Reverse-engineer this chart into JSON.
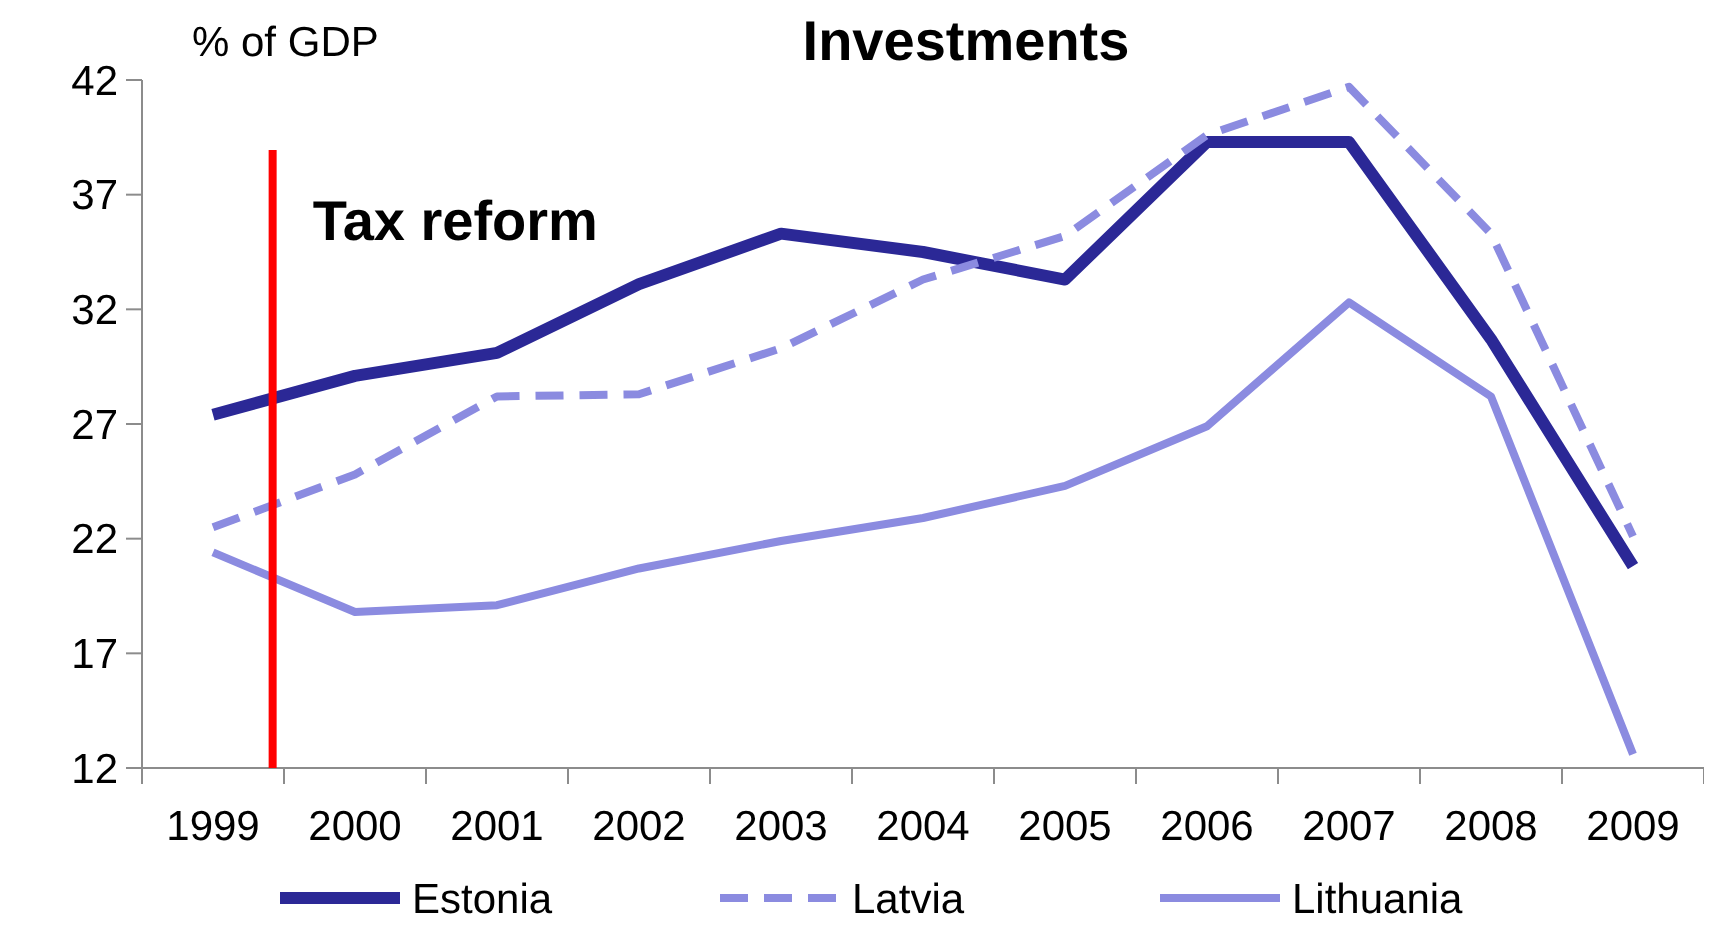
{
  "chart_data": {
    "type": "line",
    "title": "Investments",
    "ylabel": "% of GDP",
    "x": [
      1999,
      2000,
      2001,
      2002,
      2003,
      2004,
      2005,
      2006,
      2007,
      2008,
      2009
    ],
    "series": [
      {
        "name": "Estonia",
        "color": "#2b2896",
        "line_style": "solid",
        "values": [
          27.4,
          29.1,
          30.1,
          33.1,
          35.3,
          34.5,
          33.3,
          39.3,
          39.3,
          30.7,
          20.8
        ]
      },
      {
        "name": "Latvia",
        "color": "#8b8be0",
        "line_style": "dashed",
        "values": [
          22.5,
          24.8,
          28.2,
          28.3,
          30.3,
          33.3,
          35.2,
          39.6,
          41.7,
          35.3,
          22.1
        ]
      },
      {
        "name": "Lithuania",
        "color": "#8b8be0",
        "line_style": "solid",
        "values": [
          21.4,
          18.8,
          19.1,
          20.7,
          21.9,
          22.9,
          24.3,
          26.9,
          32.3,
          28.2,
          12.6
        ]
      }
    ],
    "xlim": [
      1998.5,
      2009.5
    ],
    "xticks": [
      1999,
      2000,
      2001,
      2002,
      2003,
      2004,
      2005,
      2006,
      2007,
      2008,
      2009
    ],
    "ylim": [
      12,
      42
    ],
    "yticks": [
      12,
      17,
      22,
      27,
      32,
      37,
      42
    ],
    "legend": "bottom",
    "ref_lines": [
      {
        "axis": "x",
        "value": 1999.42,
        "label": "Tax reform",
        "color": "#ff0000"
      }
    ]
  }
}
